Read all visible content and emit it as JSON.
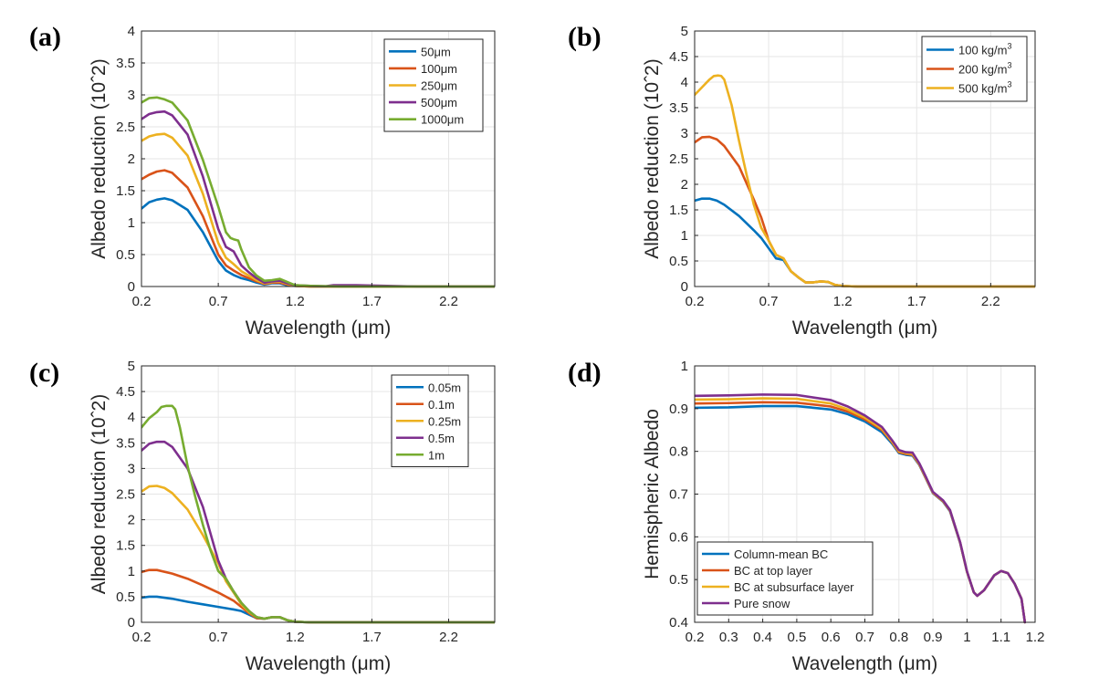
{
  "colors": {
    "blue": "#0072BD",
    "orange": "#D95319",
    "yellow": "#EDB120",
    "purple": "#7E2F8E",
    "green": "#77AC30",
    "grid": "#e6e6e6",
    "axis": "#262626"
  },
  "chart_data": [
    {
      "panel_label": "(a)",
      "type": "line",
      "xlabel": "Wavelength (μm)",
      "ylabel": "Albedo reduction (10ˆ2)",
      "xlim": [
        0.2,
        2.5
      ],
      "ylim": [
        0,
        4
      ],
      "xticks": [
        "0.2",
        "0.7",
        "1.2",
        "1.7",
        "2.2"
      ],
      "yticks": [
        "0",
        "0.5",
        "1",
        "1.5",
        "2",
        "2.5",
        "3",
        "3.5",
        "4"
      ],
      "grid": true,
      "legend_position": "top-right",
      "series": [
        {
          "name": "50μm",
          "color": "blue",
          "x": [
            0.2,
            0.25,
            0.3,
            0.35,
            0.4,
            0.5,
            0.6,
            0.7,
            0.75,
            0.8,
            0.85,
            0.9,
            0.95,
            1.0,
            1.05,
            1.1,
            1.15,
            1.2,
            1.3,
            1.5,
            2.0,
            2.5
          ],
          "y": [
            1.22,
            1.32,
            1.36,
            1.38,
            1.35,
            1.2,
            0.85,
            0.4,
            0.25,
            0.18,
            0.13,
            0.1,
            0.06,
            0.03,
            0.05,
            0.05,
            0.02,
            0.01,
            0.0,
            0.0,
            0.0,
            0.0
          ]
        },
        {
          "name": "100μm",
          "color": "orange",
          "x": [
            0.2,
            0.25,
            0.3,
            0.35,
            0.4,
            0.5,
            0.6,
            0.7,
            0.75,
            0.8,
            0.85,
            0.9,
            0.95,
            1.0,
            1.05,
            1.1,
            1.15,
            1.2,
            1.3,
            1.5,
            2.0,
            2.5
          ],
          "y": [
            1.68,
            1.75,
            1.8,
            1.82,
            1.78,
            1.55,
            1.1,
            0.5,
            0.33,
            0.25,
            0.18,
            0.13,
            0.08,
            0.04,
            0.06,
            0.06,
            0.03,
            0.01,
            0.0,
            0.0,
            0.0,
            0.0
          ]
        },
        {
          "name": "250μm",
          "color": "yellow",
          "x": [
            0.2,
            0.25,
            0.3,
            0.35,
            0.4,
            0.5,
            0.6,
            0.7,
            0.75,
            0.8,
            0.85,
            0.9,
            0.95,
            1.0,
            1.05,
            1.1,
            1.15,
            1.2,
            1.3,
            1.5,
            2.0,
            2.5
          ],
          "y": [
            2.28,
            2.35,
            2.38,
            2.39,
            2.33,
            2.05,
            1.45,
            0.68,
            0.45,
            0.35,
            0.24,
            0.17,
            0.1,
            0.05,
            0.07,
            0.08,
            0.04,
            0.01,
            0.0,
            0.0,
            0.0,
            0.0
          ]
        },
        {
          "name": "500μm",
          "color": "purple",
          "x": [
            0.2,
            0.25,
            0.3,
            0.35,
            0.4,
            0.5,
            0.6,
            0.7,
            0.75,
            0.8,
            0.85,
            0.9,
            0.95,
            1.0,
            1.05,
            1.1,
            1.15,
            1.2,
            1.3,
            1.4,
            1.45,
            1.5,
            1.55,
            1.6,
            2.0,
            2.5
          ],
          "y": [
            2.62,
            2.7,
            2.73,
            2.74,
            2.68,
            2.38,
            1.72,
            0.9,
            0.62,
            0.55,
            0.33,
            0.22,
            0.13,
            0.06,
            0.08,
            0.09,
            0.05,
            0.02,
            0.01,
            0.005,
            0.02,
            0.02,
            0.02,
            0.02,
            0.0,
            0.0
          ]
        },
        {
          "name": "1000μm",
          "color": "green",
          "x": [
            0.2,
            0.25,
            0.3,
            0.35,
            0.4,
            0.5,
            0.6,
            0.7,
            0.75,
            0.78,
            0.8,
            0.83,
            0.85,
            0.9,
            0.95,
            1.0,
            1.05,
            1.1,
            1.15,
            1.2,
            1.3,
            1.5,
            2.0,
            2.5
          ],
          "y": [
            2.88,
            2.95,
            2.96,
            2.93,
            2.88,
            2.6,
            1.98,
            1.25,
            0.85,
            0.76,
            0.74,
            0.72,
            0.58,
            0.3,
            0.17,
            0.09,
            0.1,
            0.12,
            0.07,
            0.02,
            0.01,
            0.0,
            0.0,
            0.0
          ]
        }
      ]
    },
    {
      "panel_label": "(b)",
      "type": "line",
      "xlabel": "Wavelength (μm)",
      "ylabel": "Albedo reduction (10ˆ2)",
      "xlim": [
        0.2,
        2.5
      ],
      "ylim": [
        0,
        5
      ],
      "xticks": [
        "0.2",
        "0.7",
        "1.2",
        "1.7",
        "2.2"
      ],
      "yticks": [
        "0",
        "0.5",
        "1",
        "1.5",
        "2",
        "2.5",
        "3",
        "3.5",
        "4",
        "4.5",
        "5"
      ],
      "grid": true,
      "legend_position": "top-right",
      "series": [
        {
          "name": "100 kg/m³",
          "color": "blue",
          "x": [
            0.2,
            0.25,
            0.3,
            0.35,
            0.4,
            0.5,
            0.6,
            0.65,
            0.7,
            0.75,
            0.8,
            0.85,
            0.9,
            0.95,
            1.0,
            1.05,
            1.1,
            1.15,
            1.2,
            1.3,
            1.5,
            2.0,
            2.5
          ],
          "y": [
            1.68,
            1.72,
            1.72,
            1.68,
            1.6,
            1.38,
            1.1,
            0.95,
            0.75,
            0.55,
            0.52,
            0.3,
            0.18,
            0.08,
            0.08,
            0.1,
            0.09,
            0.03,
            0.01,
            0.0,
            0.0,
            0.0,
            0.0
          ]
        },
        {
          "name": "200 kg/m³",
          "color": "orange",
          "x": [
            0.2,
            0.25,
            0.3,
            0.35,
            0.4,
            0.5,
            0.6,
            0.65,
            0.7,
            0.75,
            0.8,
            0.85,
            0.9,
            0.95,
            1.0,
            1.05,
            1.1,
            1.15,
            1.2,
            1.3,
            1.5,
            2.0,
            2.5
          ],
          "y": [
            2.82,
            2.92,
            2.93,
            2.88,
            2.75,
            2.35,
            1.7,
            1.35,
            0.9,
            0.62,
            0.55,
            0.3,
            0.18,
            0.08,
            0.08,
            0.1,
            0.09,
            0.03,
            0.01,
            0.0,
            0.0,
            0.0,
            0.0
          ]
        },
        {
          "name": "500 kg/m³",
          "color": "yellow",
          "x": [
            0.2,
            0.25,
            0.3,
            0.33,
            0.36,
            0.38,
            0.4,
            0.45,
            0.5,
            0.55,
            0.6,
            0.65,
            0.7,
            0.75,
            0.8,
            0.85,
            0.9,
            0.95,
            1.0,
            1.05,
            1.1,
            1.15,
            1.2,
            1.3,
            1.5,
            2.0,
            2.5
          ],
          "y": [
            3.75,
            3.9,
            4.05,
            4.12,
            4.13,
            4.12,
            4.05,
            3.55,
            2.85,
            2.2,
            1.6,
            1.15,
            0.9,
            0.62,
            0.55,
            0.3,
            0.18,
            0.08,
            0.08,
            0.1,
            0.09,
            0.03,
            0.01,
            0.0,
            0.0,
            0.0,
            0.0
          ]
        }
      ]
    },
    {
      "panel_label": "(c)",
      "type": "line",
      "xlabel": "Wavelength (μm)",
      "ylabel": "Albedo reduction (10ˆ2)",
      "xlim": [
        0.2,
        2.5
      ],
      "ylim": [
        0,
        5
      ],
      "xticks": [
        "0.2",
        "0.7",
        "1.2",
        "1.7",
        "2.2"
      ],
      "yticks": [
        "0",
        "0.5",
        "1",
        "1.5",
        "2",
        "2.5",
        "3",
        "3.5",
        "4",
        "4.5",
        "5"
      ],
      "grid": true,
      "legend_position": "top-right",
      "series": [
        {
          "name": "0.05m",
          "color": "blue",
          "x": [
            0.2,
            0.25,
            0.3,
            0.4,
            0.5,
            0.6,
            0.7,
            0.8,
            0.85,
            0.9,
            0.95,
            1.0,
            1.05,
            1.1,
            1.15,
            1.2,
            1.3,
            1.5,
            2.0,
            2.5
          ],
          "y": [
            0.48,
            0.5,
            0.5,
            0.46,
            0.4,
            0.35,
            0.3,
            0.25,
            0.22,
            0.15,
            0.08,
            0.07,
            0.1,
            0.1,
            0.04,
            0.01,
            0.0,
            0.0,
            0.0,
            0.0
          ]
        },
        {
          "name": "0.1m",
          "color": "orange",
          "x": [
            0.2,
            0.25,
            0.3,
            0.4,
            0.5,
            0.6,
            0.7,
            0.8,
            0.85,
            0.9,
            0.95,
            1.0,
            1.05,
            1.1,
            1.15,
            1.2,
            1.3,
            1.5,
            2.0,
            2.5
          ],
          "y": [
            0.98,
            1.02,
            1.02,
            0.95,
            0.85,
            0.72,
            0.58,
            0.42,
            0.3,
            0.18,
            0.08,
            0.07,
            0.1,
            0.1,
            0.04,
            0.01,
            0.0,
            0.0,
            0.0,
            0.0
          ]
        },
        {
          "name": "0.25m",
          "color": "yellow",
          "x": [
            0.2,
            0.25,
            0.3,
            0.35,
            0.4,
            0.5,
            0.6,
            0.7,
            0.75,
            0.8,
            0.85,
            0.9,
            0.95,
            1.0,
            1.05,
            1.1,
            1.15,
            1.2,
            1.3,
            1.5,
            2.0,
            2.5
          ],
          "y": [
            2.55,
            2.65,
            2.66,
            2.62,
            2.52,
            2.2,
            1.7,
            1.15,
            0.8,
            0.58,
            0.35,
            0.2,
            0.1,
            0.07,
            0.1,
            0.1,
            0.04,
            0.01,
            0.0,
            0.0,
            0.0,
            0.0
          ]
        },
        {
          "name": "0.5m",
          "color": "purple",
          "x": [
            0.2,
            0.25,
            0.3,
            0.35,
            0.4,
            0.5,
            0.6,
            0.7,
            0.75,
            0.8,
            0.85,
            0.9,
            0.95,
            1.0,
            1.05,
            1.1,
            1.15,
            1.2,
            1.3,
            1.5,
            2.0,
            2.5
          ],
          "y": [
            3.35,
            3.48,
            3.52,
            3.52,
            3.42,
            3.0,
            2.25,
            1.2,
            0.85,
            0.6,
            0.38,
            0.22,
            0.1,
            0.07,
            0.1,
            0.1,
            0.04,
            0.01,
            0.0,
            0.0,
            0.0,
            0.0
          ]
        },
        {
          "name": "1m",
          "color": "green",
          "x": [
            0.2,
            0.25,
            0.3,
            0.33,
            0.36,
            0.4,
            0.42,
            0.45,
            0.5,
            0.55,
            0.6,
            0.65,
            0.7,
            0.75,
            0.8,
            0.85,
            0.9,
            0.95,
            1.0,
            1.05,
            1.1,
            1.15,
            1.2,
            1.3,
            1.5,
            2.0,
            2.5
          ],
          "y": [
            3.8,
            3.98,
            4.1,
            4.2,
            4.22,
            4.22,
            4.15,
            3.8,
            3.05,
            2.45,
            1.9,
            1.4,
            1.0,
            0.85,
            0.6,
            0.38,
            0.22,
            0.1,
            0.07,
            0.1,
            0.1,
            0.04,
            0.01,
            0.0,
            0.0,
            0.0,
            0.0
          ]
        }
      ]
    },
    {
      "panel_label": "(d)",
      "type": "line",
      "xlabel": "Wavelength (μm)",
      "ylabel": "Hemispheric Albedo",
      "xlim": [
        0.2,
        1.2
      ],
      "ylim": [
        0.4,
        1
      ],
      "xticks": [
        "0.2",
        "0.3",
        "0.4",
        "0.5",
        "0.6",
        "0.7",
        "0.8",
        "0.9",
        "1",
        "1.1",
        "1.2"
      ],
      "yticks": [
        "0.4",
        "0.5",
        "0.6",
        "0.7",
        "0.8",
        "0.9",
        "1"
      ],
      "grid": true,
      "legend_position": "bottom-left",
      "series": [
        {
          "name": "Column-mean BC",
          "color": "blue",
          "x": [
            0.2,
            0.3,
            0.4,
            0.5,
            0.6,
            0.65,
            0.7,
            0.75,
            0.78,
            0.8,
            0.82,
            0.84,
            0.86,
            0.88,
            0.9,
            0.93,
            0.95,
            0.98,
            1.0,
            1.02,
            1.03,
            1.05,
            1.08,
            1.1,
            1.12,
            1.14,
            1.16,
            1.17
          ],
          "y": [
            0.902,
            0.903,
            0.906,
            0.906,
            0.898,
            0.887,
            0.87,
            0.845,
            0.818,
            0.796,
            0.792,
            0.79,
            0.768,
            0.735,
            0.702,
            0.682,
            0.66,
            0.585,
            0.518,
            0.47,
            0.462,
            0.475,
            0.51,
            0.52,
            0.515,
            0.49,
            0.455,
            0.4
          ]
        },
        {
          "name": "BC at top layer",
          "color": "orange",
          "x": [
            0.2,
            0.3,
            0.4,
            0.5,
            0.6,
            0.65,
            0.7,
            0.75,
            0.78,
            0.8,
            0.82,
            0.84,
            0.86,
            0.88,
            0.9,
            0.93,
            0.95,
            0.98,
            1.0,
            1.02,
            1.03,
            1.05,
            1.08,
            1.1,
            1.12,
            1.14,
            1.16,
            1.17
          ],
          "y": [
            0.912,
            0.913,
            0.915,
            0.914,
            0.905,
            0.893,
            0.875,
            0.85,
            0.821,
            0.798,
            0.794,
            0.792,
            0.769,
            0.736,
            0.703,
            0.683,
            0.661,
            0.586,
            0.518,
            0.47,
            0.462,
            0.475,
            0.51,
            0.52,
            0.515,
            0.49,
            0.455,
            0.4
          ]
        },
        {
          "name": "BC at subsurface layer",
          "color": "yellow",
          "x": [
            0.2,
            0.3,
            0.4,
            0.5,
            0.6,
            0.65,
            0.7,
            0.75,
            0.78,
            0.8,
            0.82,
            0.84,
            0.86,
            0.88,
            0.9,
            0.93,
            0.95,
            0.98,
            1.0,
            1.02,
            1.03,
            1.05,
            1.08,
            1.1,
            1.12,
            1.14,
            1.16,
            1.17
          ],
          "y": [
            0.921,
            0.922,
            0.924,
            0.923,
            0.912,
            0.898,
            0.879,
            0.853,
            0.823,
            0.8,
            0.796,
            0.794,
            0.77,
            0.737,
            0.704,
            0.684,
            0.662,
            0.586,
            0.518,
            0.47,
            0.462,
            0.475,
            0.51,
            0.52,
            0.515,
            0.49,
            0.455,
            0.4
          ]
        },
        {
          "name": "Pure snow",
          "color": "purple",
          "x": [
            0.2,
            0.3,
            0.4,
            0.5,
            0.6,
            0.65,
            0.7,
            0.75,
            0.78,
            0.8,
            0.82,
            0.84,
            0.86,
            0.88,
            0.9,
            0.93,
            0.95,
            0.98,
            1.0,
            1.02,
            1.03,
            1.05,
            1.08,
            1.1,
            1.12,
            1.14,
            1.16,
            1.17
          ],
          "y": [
            0.93,
            0.931,
            0.933,
            0.932,
            0.92,
            0.905,
            0.884,
            0.857,
            0.826,
            0.803,
            0.798,
            0.797,
            0.772,
            0.739,
            0.705,
            0.685,
            0.663,
            0.587,
            0.519,
            0.47,
            0.462,
            0.475,
            0.51,
            0.52,
            0.515,
            0.49,
            0.455,
            0.4
          ]
        }
      ]
    }
  ]
}
